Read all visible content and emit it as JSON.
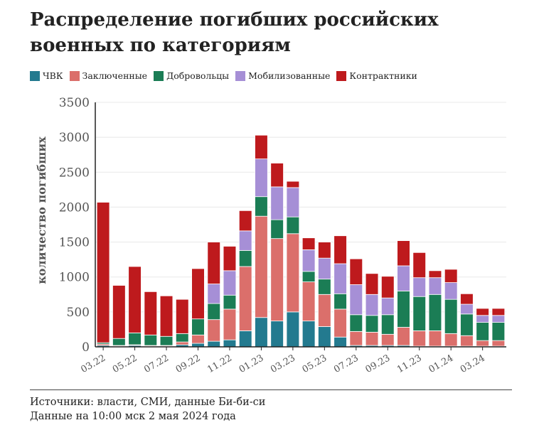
{
  "title": "Распределение погибших российских военных по категориям",
  "footer": {
    "source": "Источники: власти, СМИ, данные Би-би-си",
    "date": "Данные на 10:00 мск 2 мая 2024 года"
  },
  "chart_data": {
    "type": "bar",
    "stacked": true,
    "ylabel": "количество погибших",
    "ylim": [
      0,
      3500
    ],
    "yticks": [
      0,
      500,
      1000,
      1500,
      2000,
      2500,
      3000,
      3500
    ],
    "grid": true,
    "legend_position": "top-left",
    "categories": [
      "03.22",
      "04.22",
      "05.22",
      "06.22",
      "07.22",
      "08.22",
      "09.22",
      "10.22",
      "11.22",
      "12.22",
      "01.23",
      "02.23",
      "03.23",
      "04.23",
      "05.23",
      "06.23",
      "07.23",
      "08.23",
      "09.23",
      "10.23",
      "11.23",
      "12.23",
      "01.24",
      "02.24",
      "03.24",
      "04.24"
    ],
    "xtick_labels": [
      "03.22",
      "05.22",
      "07.22",
      "09.22",
      "11.22",
      "01.23",
      "03.23",
      "05.23",
      "07.23",
      "09.23",
      "11.23",
      "01.24",
      "03.24"
    ],
    "series": [
      {
        "name": "ЧВК",
        "color": "#237a8f",
        "values": [
          20,
          10,
          20,
          10,
          10,
          30,
          50,
          80,
          100,
          230,
          420,
          370,
          500,
          370,
          290,
          140,
          20,
          20,
          20,
          20,
          10,
          10,
          10,
          10,
          10,
          10
        ]
      },
      {
        "name": "Заключенные",
        "color": "#db6f6b",
        "values": [
          20,
          10,
          10,
          10,
          10,
          40,
          120,
          310,
          440,
          920,
          1450,
          1180,
          1120,
          560,
          460,
          400,
          200,
          190,
          160,
          260,
          220,
          220,
          180,
          150,
          80,
          80
        ]
      },
      {
        "name": "Добровольцы",
        "color": "#1b7d55",
        "values": [
          20,
          100,
          170,
          150,
          130,
          120,
          230,
          230,
          200,
          230,
          280,
          270,
          240,
          150,
          220,
          220,
          240,
          240,
          280,
          520,
          490,
          520,
          490,
          310,
          260,
          260
        ]
      },
      {
        "name": "Мобилизованные",
        "color": "#a68fd6",
        "values": [
          0,
          0,
          0,
          0,
          0,
          0,
          0,
          280,
          350,
          280,
          540,
          470,
          420,
          310,
          300,
          430,
          430,
          300,
          240,
          360,
          270,
          240,
          240,
          140,
          100,
          100
        ]
      },
      {
        "name": "Контрактники",
        "color": "#be1a1d",
        "values": [
          2010,
          760,
          950,
          620,
          580,
          490,
          720,
          600,
          350,
          290,
          340,
          340,
          90,
          170,
          230,
          400,
          370,
          300,
          310,
          360,
          360,
          100,
          190,
          150,
          100,
          100
        ]
      }
    ]
  }
}
